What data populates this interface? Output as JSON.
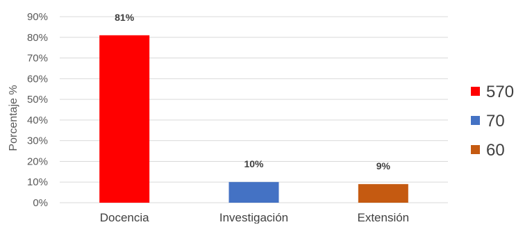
{
  "chart_data": {
    "type": "bar",
    "title": "",
    "xlabel": "",
    "ylabel": "Porcentaje %",
    "ylim": [
      0,
      90
    ],
    "yticks": [
      "0%",
      "10%",
      "20%",
      "30%",
      "40%",
      "50%",
      "60%",
      "70%",
      "80%",
      "90%"
    ],
    "grid": true,
    "legend_position": "right",
    "categories": [
      "Docencia",
      "Investigación",
      "Extensión"
    ],
    "values": [
      81,
      10,
      9
    ],
    "data_labels": [
      "81%",
      "10%",
      "9%"
    ],
    "colors": [
      "#ff0000",
      "#4472c4",
      "#c55a11"
    ],
    "legend": [
      {
        "label": "570",
        "color": "#ff0000"
      },
      {
        "label": "70",
        "color": "#4472c4"
      },
      {
        "label": "60",
        "color": "#c55a11"
      }
    ]
  }
}
